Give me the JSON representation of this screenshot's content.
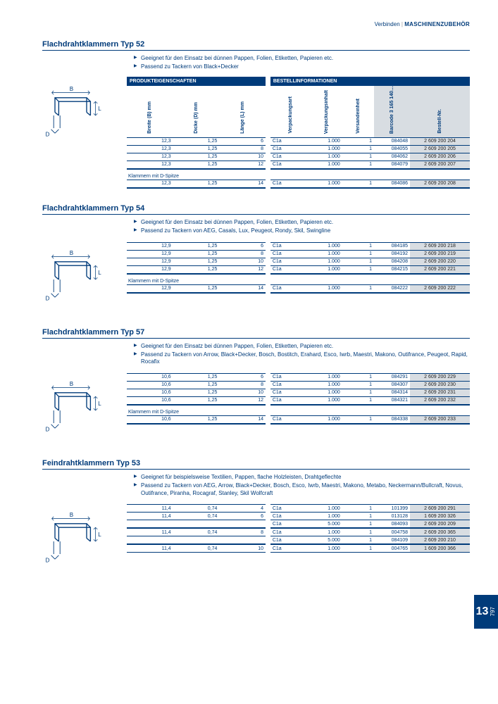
{
  "breadcrumb_left": "Verbinden",
  "breadcrumb_right": "MASCHINENZUBEHÖR",
  "header_left": "PRODUKTEIGENSCHAFTEN",
  "header_right": "BESTELLINFORMATIONEN",
  "cols": {
    "breite": "Breite (B) mm",
    "dicke": "Dicke (D) mm",
    "lange": "Länge (L) mm",
    "vart": "Verpackungsart",
    "vinh": "Verpackungsinhalt",
    "veinh": "Versandeinheit",
    "barcode": "Barcode 3 165 140…",
    "bestell": "Bestell-Nr."
  },
  "subhead_dspitze": "Klammern mit D-Spitze",
  "tab_big": "13",
  "tab_side": "797",
  "sections": [
    {
      "title": "Flachdrahtklammern Typ 52",
      "bullets": [
        "Geeignet für den Einsatz bei dünnen Pappen, Folien, Etiketten, Papieren etc.",
        "Passend zu Tackern von Black+Decker"
      ],
      "show_full_header": true,
      "rows": [
        {
          "b": "12,3",
          "d": "1,25",
          "l": "6",
          "vart": "C1a",
          "vinh": "1.000",
          "ve": "1",
          "bc": "084048",
          "best": "2 609 200 204"
        },
        {
          "b": "12,3",
          "d": "1,25",
          "l": "8",
          "vart": "C1a",
          "vinh": "1.000",
          "ve": "1",
          "bc": "084055",
          "best": "2 609 200 205"
        },
        {
          "b": "12,3",
          "d": "1,25",
          "l": "10",
          "vart": "C1a",
          "vinh": "1.000",
          "ve": "1",
          "bc": "084062",
          "best": "2 609 200 206"
        },
        {
          "b": "12,3",
          "d": "1,25",
          "l": "12",
          "vart": "C1a",
          "vinh": "1.000",
          "ve": "1",
          "bc": "084079",
          "best": "2 609 200 207",
          "thick": true
        }
      ],
      "subrows": [
        {
          "b": "12,3",
          "d": "1,25",
          "l": "14",
          "vart": "C1a",
          "vinh": "1.000",
          "ve": "1",
          "bc": "084086",
          "best": "2 609 200 208",
          "thick": true
        }
      ]
    },
    {
      "title": "Flachdrahtklammern Typ 54",
      "bullets": [
        "Geeignet für den Einsatz bei dünnen Pappen, Folien, Etiketten, Papieren etc.",
        "Passend zu Tackern von AEG, Casals, Lux, Peugeot, Rondy, Skil, Swingline"
      ],
      "show_full_header": false,
      "rows": [
        {
          "b": "12,9",
          "d": "1,25",
          "l": "6",
          "vart": "C1a",
          "vinh": "1.000",
          "ve": "1",
          "bc": "084185",
          "best": "2 609 200 218"
        },
        {
          "b": "12,9",
          "d": "1,25",
          "l": "8",
          "vart": "C1a",
          "vinh": "1.000",
          "ve": "1",
          "bc": "084192",
          "best": "2 609 200 219"
        },
        {
          "b": "12,9",
          "d": "1,25",
          "l": "10",
          "vart": "C1a",
          "vinh": "1.000",
          "ve": "1",
          "bc": "084208",
          "best": "2 609 200 220"
        },
        {
          "b": "12,9",
          "d": "1,25",
          "l": "12",
          "vart": "C1a",
          "vinh": "1.000",
          "ve": "1",
          "bc": "084215",
          "best": "2 609 200 221",
          "thick": true
        }
      ],
      "subrows": [
        {
          "b": "12,9",
          "d": "1,25",
          "l": "14",
          "vart": "C1a",
          "vinh": "1.000",
          "ve": "1",
          "bc": "084222",
          "best": "2 609 200 222",
          "thick": true
        }
      ]
    },
    {
      "title": "Flachdrahtklammern Typ 57",
      "bullets": [
        "Geeignet für den Einsatz bei dünnen Pappen, Folien, Etiketten, Papieren etc.",
        "Passend zu Tackern von Arrow, Black+Decker, Bosch, Bostitch, Erahard, Esco, Iwrb, Maestri, Makono, Outifrance, Peugeot, Rapid, Rocafix"
      ],
      "show_full_header": false,
      "rows": [
        {
          "b": "10,6",
          "d": "1,25",
          "l": "6",
          "vart": "C1a",
          "vinh": "1.000",
          "ve": "1",
          "bc": "084291",
          "best": "2 609 200 229"
        },
        {
          "b": "10,6",
          "d": "1,25",
          "l": "8",
          "vart": "C1a",
          "vinh": "1.000",
          "ve": "1",
          "bc": "084307",
          "best": "2 609 200 230"
        },
        {
          "b": "10,6",
          "d": "1,25",
          "l": "10",
          "vart": "C1a",
          "vinh": "1.000",
          "ve": "1",
          "bc": "084314",
          "best": "2 609 200 231"
        },
        {
          "b": "10,6",
          "d": "1,25",
          "l": "12",
          "vart": "C1a",
          "vinh": "1.000",
          "ve": "1",
          "bc": "084321",
          "best": "2 609 200 232",
          "thick": true
        }
      ],
      "subrows": [
        {
          "b": "10,6",
          "d": "1,25",
          "l": "14",
          "vart": "C1a",
          "vinh": "1.000",
          "ve": "1",
          "bc": "084338",
          "best": "2 609 200 233",
          "thick": true
        }
      ]
    },
    {
      "title": "Feindrahtklammern Typ 53",
      "bullets": [
        "Geeignet für beispielsweise Textilien, Pappen, flache Holzleisten, Drahtgeflechte",
        "Passend zu Tackern von AEG, Arrow, Black+Decker, Bosch, Esco, Iwrb, Maestri, Makono, Metabo, Neckermann/Bullcraft, Novus, Outifrance, Piranha, Rocagraf, Stanley, Skil Wolfcraft"
      ],
      "show_full_header": false,
      "rows": [
        {
          "b": "11,4",
          "d": "0,74",
          "l": "4",
          "vart": "C1a",
          "vinh": "1.000",
          "ve": "1",
          "bc": "101399",
          "best": "2 609 200 291"
        },
        {
          "b": "11,4",
          "d": "0,74",
          "l": "6",
          "vart": "C1a",
          "vinh": "1.000",
          "ve": "1",
          "bc": "013128",
          "best": "1 609 200 326"
        },
        {
          "b": "",
          "d": "",
          "l": "",
          "vart": "C1a",
          "vinh": "5.000",
          "ve": "1",
          "bc": "084093",
          "best": "2 609 200 209",
          "thick": true
        },
        {
          "b": "11,4",
          "d": "0,74",
          "l": "8",
          "vart": "C1a",
          "vinh": "1.000",
          "ve": "1",
          "bc": "004758",
          "best": "2 609 200 365"
        },
        {
          "b": "",
          "d": "",
          "l": "",
          "vart": "C1a",
          "vinh": "5.000",
          "ve": "1",
          "bc": "084109",
          "best": "2 609 200 210",
          "thick": true
        },
        {
          "b": "11,4",
          "d": "0,74",
          "l": "10",
          "vart": "C1a",
          "vinh": "1.000",
          "ve": "1",
          "bc": "004765",
          "best": "1 609 200 366"
        }
      ],
      "subrows": []
    }
  ]
}
